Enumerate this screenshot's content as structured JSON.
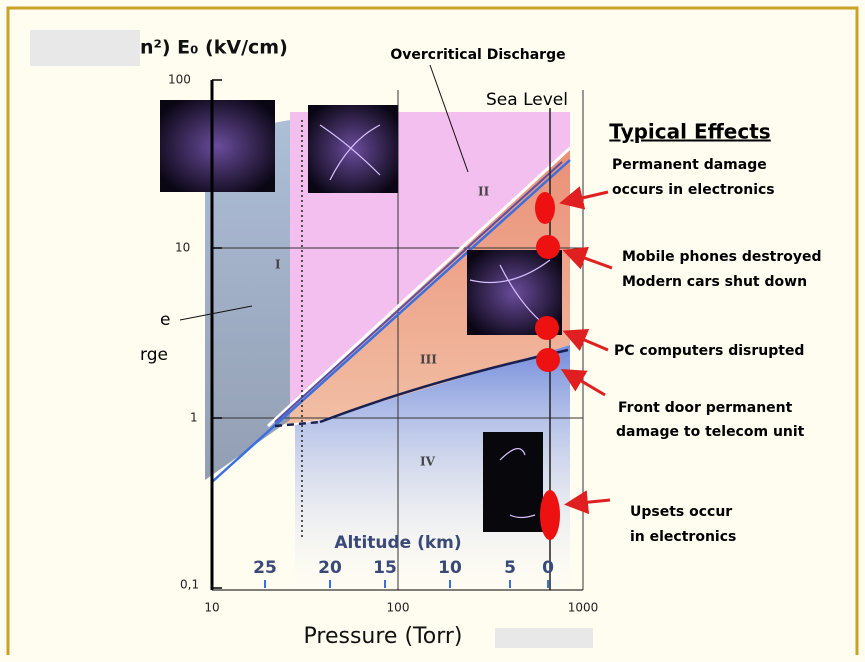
{
  "header": {
    "y_axis_title": "n²)  E₀ (kV/cm)",
    "region_label": "Overcritical Discharge",
    "sea_level": "Sea Level",
    "partial_left": [
      "e",
      "rge"
    ]
  },
  "regions": [
    "I",
    "II",
    "III",
    "IV"
  ],
  "y_ticks": [
    "100",
    "10",
    "1",
    "0,1"
  ],
  "x_ticks": [
    "10",
    "100",
    "1000"
  ],
  "x_axis_title": "Pressure (Torr)",
  "altitude": {
    "title": "Altitude (km)",
    "ticks": [
      "25",
      "20",
      "15",
      "10",
      "5",
      "0"
    ]
  },
  "effects": {
    "title": "Typical Effects",
    "items": [
      [
        "Permanent damage",
        "occurs in electronics"
      ],
      [
        "Mobile phones destroyed",
        "Modern cars shut down"
      ],
      [
        "PC computers disrupted"
      ],
      [
        "Front door permanent",
        "damage to telecom unit"
      ],
      [
        "Upsets occur",
        "in electronics"
      ]
    ]
  }
}
